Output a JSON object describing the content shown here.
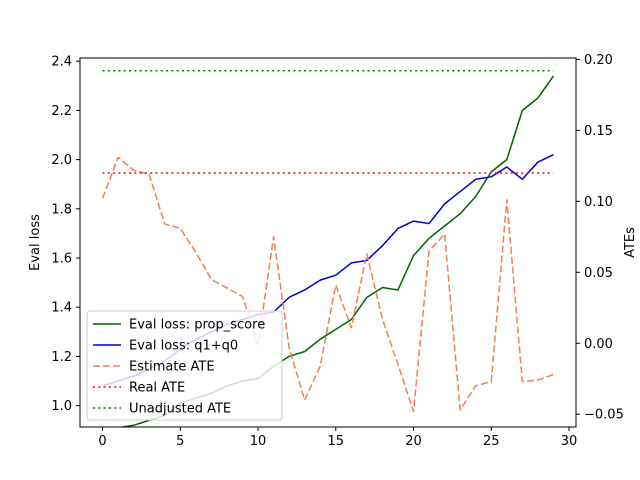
{
  "chart_data": {
    "type": "line",
    "title": "",
    "xlabel": "",
    "ylabel": "Eval loss",
    "y2label": "ATEs",
    "xlim": [
      -1.45,
      30.45
    ],
    "ylim": [
      0.913,
      2.413
    ],
    "y2lim": [
      -0.059,
      0.201
    ],
    "x_ticks": [
      0,
      5,
      10,
      15,
      20,
      25,
      30
    ],
    "y_ticks": [
      1.0,
      1.2,
      1.4,
      1.6,
      1.8,
      2.0,
      2.2,
      2.4
    ],
    "y2_ticks": [
      -0.05,
      0.0,
      0.05,
      0.1,
      0.15,
      0.2
    ],
    "x_tick_labels": [
      "0",
      "5",
      "10",
      "15",
      "20",
      "25",
      "30"
    ],
    "y_tick_labels": [
      "1.0",
      "1.2",
      "1.4",
      "1.6",
      "1.8",
      "2.0",
      "2.2",
      "2.4"
    ],
    "y2_tick_labels": [
      "−0.05",
      "0.00",
      "0.05",
      "0.10",
      "0.15",
      "0.20"
    ],
    "grid": false,
    "legend_position": "lower-left",
    "x": [
      0,
      1,
      2,
      3,
      4,
      5,
      6,
      7,
      8,
      9,
      10,
      11,
      12,
      13,
      14,
      15,
      16,
      17,
      18,
      19,
      20,
      21,
      22,
      23,
      24,
      25,
      26,
      27,
      28,
      29
    ],
    "series": [
      {
        "name": "Eval loss: prop_score",
        "axis": "left",
        "color": "#006400",
        "style": "solid",
        "values": [
          0.9,
          0.91,
          0.92,
          0.94,
          0.96,
          1.01,
          1.03,
          1.05,
          1.08,
          1.1,
          1.11,
          1.16,
          1.2,
          1.22,
          1.27,
          1.31,
          1.35,
          1.44,
          1.48,
          1.47,
          1.61,
          1.68,
          1.73,
          1.78,
          1.85,
          1.95,
          2.0,
          2.2,
          2.25,
          2.34
        ]
      },
      {
        "name": "Eval loss: q1+q0",
        "axis": "left",
        "color": "#0000cd",
        "style": "solid",
        "values": [
          1.08,
          1.1,
          1.12,
          1.15,
          1.18,
          1.23,
          1.27,
          1.3,
          1.33,
          1.35,
          1.37,
          1.38,
          1.44,
          1.47,
          1.51,
          1.53,
          1.58,
          1.59,
          1.65,
          1.72,
          1.75,
          1.74,
          1.82,
          1.87,
          1.92,
          1.93,
          1.97,
          1.92,
          1.99,
          2.02
        ]
      },
      {
        "name": "Estimate ATE",
        "axis": "right",
        "color": "#f08050",
        "style": "dashed",
        "values": [
          0.102,
          0.131,
          0.122,
          0.119,
          0.084,
          0.081,
          0.064,
          0.045,
          0.039,
          0.033,
          -0.001,
          0.075,
          -0.003,
          -0.04,
          -0.016,
          0.041,
          0.011,
          0.063,
          0.017,
          -0.015,
          -0.048,
          0.065,
          0.077,
          -0.047,
          -0.03,
          -0.027,
          0.101,
          -0.027,
          -0.026,
          -0.022
        ]
      },
      {
        "name": "Real ATE",
        "axis": "right",
        "color": "#ff0000",
        "style": "dotted",
        "values": [
          0.12,
          0.12,
          0.12,
          0.12,
          0.12,
          0.12,
          0.12,
          0.12,
          0.12,
          0.12,
          0.12,
          0.12,
          0.12,
          0.12,
          0.12,
          0.12,
          0.12,
          0.12,
          0.12,
          0.12,
          0.12,
          0.12,
          0.12,
          0.12,
          0.12,
          0.12,
          0.12,
          0.12,
          0.12,
          0.12
        ]
      },
      {
        "name": "Unadjusted ATE",
        "axis": "right",
        "color": "#008000",
        "style": "dotted",
        "values": [
          0.192,
          0.192,
          0.192,
          0.192,
          0.192,
          0.192,
          0.192,
          0.192,
          0.192,
          0.192,
          0.192,
          0.192,
          0.192,
          0.192,
          0.192,
          0.192,
          0.192,
          0.192,
          0.192,
          0.192,
          0.192,
          0.192,
          0.192,
          0.192,
          0.192,
          0.192,
          0.192,
          0.192,
          0.192,
          0.192
        ]
      }
    ]
  }
}
